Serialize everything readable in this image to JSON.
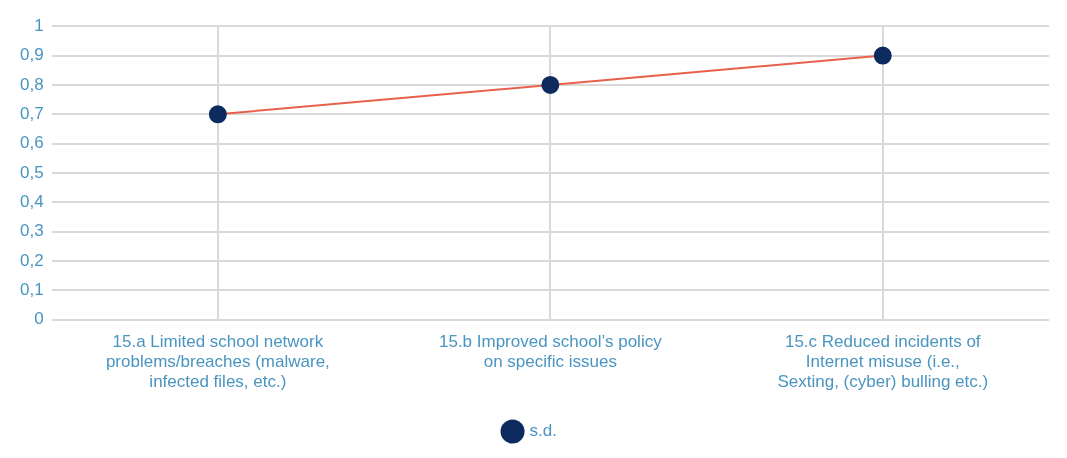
{
  "chart_data": {
    "type": "line",
    "categories": [
      "15.a Limited school network problems/breaches (malware, infected files, etc.)",
      "15.b Improved school’s policy on specific issues",
      "15.c Reduced incidents of Internet misuse (i.e., Sexting, (cyber) bulling etc.)"
    ],
    "series": [
      {
        "name": "s.d.",
        "color": "#e8604c",
        "colors": [
          "#0d2b5e",
          "#0d2b5e",
          "#0d2b5e"
        ],
        "values": [
          0.7,
          0.8,
          0.9
        ]
      }
    ],
    "ylim": [
      0,
      1
    ],
    "yticks": [
      {
        "value": 0,
        "label": "0"
      },
      {
        "value": 0.1,
        "label": "0,1"
      },
      {
        "value": 0.2,
        "label": "0,2"
      },
      {
        "value": 0.3,
        "label": "0,3"
      },
      {
        "value": 0.4,
        "label": "0,4"
      },
      {
        "value": 0.5,
        "label": "0,5"
      },
      {
        "value": 0.6,
        "label": "0,6"
      },
      {
        "value": 0.7,
        "label": "0,7"
      },
      {
        "value": 0.8,
        "label": "0,8"
      },
      {
        "value": 0.9,
        "label": "0,9"
      },
      {
        "value": 1,
        "label": "1"
      }
    ],
    "grid": true,
    "legend": "bottom",
    "marker": "circle",
    "line_style": "solid"
  }
}
